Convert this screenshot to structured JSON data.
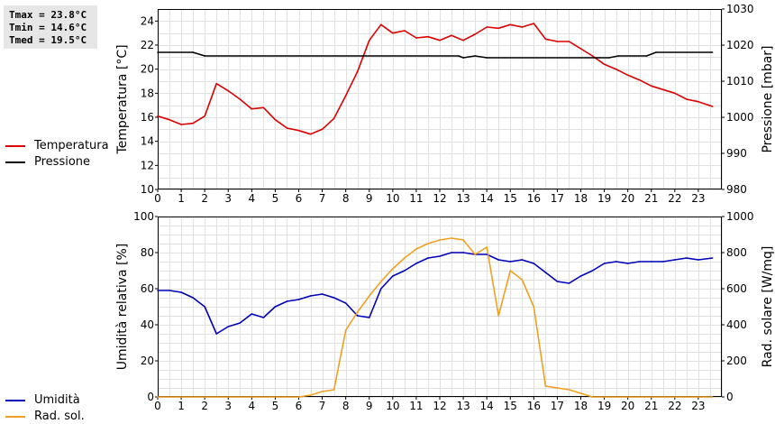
{
  "stats": {
    "tmax": "Tmax = 23.8°C",
    "tmin": "Tmin = 14.6°C",
    "tmed": "Tmed = 19.5°C"
  },
  "legend_top": [
    {
      "label": "Temperatura",
      "color": "#dd0000"
    },
    {
      "label": "Pressione",
      "color": "#000000"
    }
  ],
  "legend_bottom": [
    {
      "label": "Umidità",
      "color": "#0000bb"
    },
    {
      "label": "Rad. sol.",
      "color": "#f0a020"
    }
  ],
  "chart_data": [
    {
      "type": "line",
      "x_ticks": [
        "0",
        "1",
        "2",
        "3",
        "4",
        "5",
        "6",
        "7",
        "8",
        "9",
        "10",
        "11",
        "12",
        "13",
        "14",
        "15",
        "16",
        "17",
        "18",
        "19",
        "20",
        "21",
        "22",
        "23"
      ],
      "xlim": [
        0,
        24
      ],
      "ylabel": "Temperatura [°C]",
      "ylim": [
        10,
        25
      ],
      "y_ticks": [
        "10",
        "12",
        "14",
        "16",
        "18",
        "20",
        "22",
        "24"
      ],
      "y2label": "Pressione [mbar]",
      "y2lim": [
        980,
        1030
      ],
      "y2_ticks": [
        "980",
        "990",
        "1000",
        "1010",
        "1020",
        "1030"
      ],
      "grid": true,
      "series": [
        {
          "name": "Temperatura",
          "axis": "left",
          "color": "#dd0000",
          "points": [
            [
              0,
              16.1
            ],
            [
              0.5,
              15.8
            ],
            [
              1,
              15.4
            ],
            [
              1.5,
              15.5
            ],
            [
              2,
              16.1
            ],
            [
              2.5,
              18.8
            ],
            [
              3,
              18.2
            ],
            [
              3.5,
              17.5
            ],
            [
              4,
              16.7
            ],
            [
              4.5,
              16.8
            ],
            [
              5,
              15.8
            ],
            [
              5.5,
              15.1
            ],
            [
              6,
              14.9
            ],
            [
              6.5,
              14.6
            ],
            [
              7,
              15.0
            ],
            [
              7.5,
              15.9
            ],
            [
              8,
              17.8
            ],
            [
              8.5,
              19.8
            ],
            [
              9,
              22.4
            ],
            [
              9.5,
              23.7
            ],
            [
              10,
              23.0
            ],
            [
              10.5,
              23.2
            ],
            [
              11,
              22.6
            ],
            [
              11.5,
              22.7
            ],
            [
              12,
              22.4
            ],
            [
              12.5,
              22.8
            ],
            [
              13,
              22.4
            ],
            [
              13.5,
              22.9
            ],
            [
              14,
              23.5
            ],
            [
              14.5,
              23.4
            ],
            [
              15,
              23.7
            ],
            [
              15.5,
              23.5
            ],
            [
              16,
              23.8
            ],
            [
              16.5,
              22.5
            ],
            [
              17,
              22.3
            ],
            [
              17.5,
              22.3
            ],
            [
              18,
              21.7
            ],
            [
              18.5,
              21.1
            ],
            [
              19,
              20.4
            ],
            [
              19.5,
              20.0
            ],
            [
              20,
              19.5
            ],
            [
              20.5,
              19.1
            ],
            [
              21,
              18.6
            ],
            [
              21.5,
              18.3
            ],
            [
              22,
              18.0
            ],
            [
              22.5,
              17.5
            ],
            [
              23,
              17.3
            ],
            [
              23.6,
              16.9
            ]
          ]
        },
        {
          "name": "Pressione",
          "axis": "right",
          "color": "#000000",
          "points": [
            [
              0,
              1018
            ],
            [
              1.5,
              1018
            ],
            [
              2,
              1017
            ],
            [
              12.8,
              1017
            ],
            [
              13,
              1016.5
            ],
            [
              13.5,
              1017
            ],
            [
              14,
              1016.5
            ],
            [
              18.8,
              1016.5
            ],
            [
              19.2,
              1016.5
            ],
            [
              19.6,
              1017
            ],
            [
              20.8,
              1017
            ],
            [
              21.2,
              1018
            ],
            [
              23.6,
              1018
            ]
          ]
        }
      ]
    },
    {
      "type": "line",
      "x_ticks": [
        "0",
        "1",
        "2",
        "3",
        "4",
        "5",
        "6",
        "7",
        "8",
        "9",
        "10",
        "11",
        "12",
        "13",
        "14",
        "15",
        "16",
        "17",
        "18",
        "19",
        "20",
        "21",
        "22",
        "23"
      ],
      "xlim": [
        0,
        24
      ],
      "ylabel": "Umidità relativa [%]",
      "ylim": [
        0,
        100
      ],
      "y_ticks": [
        "0",
        "20",
        "40",
        "60",
        "80",
        "100"
      ],
      "y2label": "Rad. solare [W/mq]",
      "y2lim": [
        0,
        1000
      ],
      "y2_ticks": [
        "0",
        "200",
        "400",
        "600",
        "800",
        "1000"
      ],
      "grid": true,
      "series": [
        {
          "name": "Umidità",
          "axis": "left",
          "color": "#0000bb",
          "points": [
            [
              0,
              59
            ],
            [
              0.5,
              59
            ],
            [
              1,
              58
            ],
            [
              1.5,
              55
            ],
            [
              2,
              50
            ],
            [
              2.5,
              35
            ],
            [
              3,
              39
            ],
            [
              3.5,
              41
            ],
            [
              4,
              46
            ],
            [
              4.5,
              44
            ],
            [
              5,
              50
            ],
            [
              5.5,
              53
            ],
            [
              6,
              54
            ],
            [
              6.5,
              56
            ],
            [
              7,
              57
            ],
            [
              7.5,
              55
            ],
            [
              8,
              52
            ],
            [
              8.5,
              45
            ],
            [
              9,
              44
            ],
            [
              9.5,
              60
            ],
            [
              10,
              67
            ],
            [
              10.5,
              70
            ],
            [
              11,
              74
            ],
            [
              11.5,
              77
            ],
            [
              12,
              78
            ],
            [
              12.5,
              80
            ],
            [
              13,
              80
            ],
            [
              13.5,
              79
            ],
            [
              14,
              79
            ],
            [
              14.5,
              76
            ],
            [
              15,
              75
            ],
            [
              15.5,
              76
            ],
            [
              16,
              74
            ],
            [
              16.5,
              69
            ],
            [
              17,
              64
            ],
            [
              17.5,
              63
            ],
            [
              18,
              67
            ],
            [
              18.5,
              70
            ],
            [
              19,
              74
            ],
            [
              19.5,
              75
            ],
            [
              20,
              74
            ],
            [
              20.5,
              75
            ],
            [
              21,
              75
            ],
            [
              21.5,
              75
            ],
            [
              22,
              76
            ],
            [
              22.5,
              77
            ],
            [
              23,
              76
            ],
            [
              23.6,
              77
            ]
          ]
        },
        {
          "name": "Rad. sol.",
          "axis": "right",
          "color": "#f0a020",
          "points": [
            [
              0,
              0
            ],
            [
              6,
              0
            ],
            [
              6.5,
              10
            ],
            [
              7,
              30
            ],
            [
              7.5,
              40
            ],
            [
              8,
              370
            ],
            [
              8.5,
              470
            ],
            [
              9,
              560
            ],
            [
              9.5,
              640
            ],
            [
              10,
              710
            ],
            [
              10.5,
              770
            ],
            [
              11,
              820
            ],
            [
              11.5,
              850
            ],
            [
              12,
              870
            ],
            [
              12.5,
              880
            ],
            [
              13,
              870
            ],
            [
              13.5,
              790
            ],
            [
              14,
              830
            ],
            [
              14.5,
              450
            ],
            [
              15,
              700
            ],
            [
              15.5,
              650
            ],
            [
              16,
              500
            ],
            [
              16.5,
              60
            ],
            [
              17,
              50
            ],
            [
              17.5,
              40
            ],
            [
              18,
              20
            ],
            [
              18.5,
              0
            ],
            [
              23.6,
              0
            ]
          ]
        }
      ]
    }
  ]
}
